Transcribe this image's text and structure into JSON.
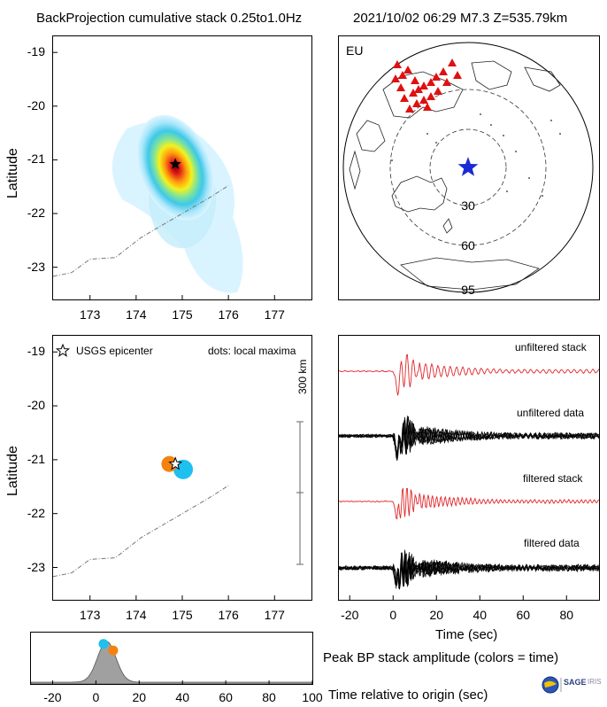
{
  "header": {
    "title": "BackProjection cumulative stack 0.25to1.0Hz",
    "event": "2021/10/02 06:29   M7.3   Z=535.79km"
  },
  "colors": {
    "stack": "#e0262a",
    "data": "#000000",
    "station": "#e01010",
    "epicenter_map": "#1a2bd6",
    "early": "#1ec0f0",
    "late": "#f5820f",
    "gray_fill": "#a0a0a0"
  },
  "chart_data": [
    {
      "type": "heatmap",
      "panel": "cumulative-stack",
      "xlabel": "",
      "ylabel": "Latitude",
      "xlim": [
        172.2,
        177.8
      ],
      "ylim": [
        -23.6,
        -18.7
      ],
      "xticks": [
        "173",
        "174",
        "175",
        "176",
        "177"
      ],
      "yticks": [
        "-19",
        "-20",
        "-21",
        "-22",
        "-23"
      ],
      "peak": {
        "lon": 174.85,
        "lat": -21.08
      },
      "epicenter": {
        "lon": 174.85,
        "lat": -21.08
      },
      "trench": [
        [
          172.2,
          -23.17
        ],
        [
          172.6,
          -23.1
        ],
        [
          173.0,
          -22.85
        ],
        [
          173.55,
          -22.82
        ],
        [
          174.1,
          -22.45
        ],
        [
          174.6,
          -22.2
        ],
        [
          175.1,
          -21.95
        ],
        [
          175.6,
          -21.7
        ],
        [
          176.0,
          -21.48
        ]
      ]
    },
    {
      "type": "scatter",
      "panel": "local-maxima",
      "ylabel": "Latitude",
      "legend_star": "USGS epicenter",
      "legend_dots": "dots: local maxima",
      "scale_label": "300 km",
      "xlim": [
        172.2,
        177.8
      ],
      "ylim": [
        -23.6,
        -18.7
      ],
      "xticks": [
        "173",
        "174",
        "175",
        "176",
        "177"
      ],
      "yticks": [
        "-19",
        "-20",
        "-21",
        "-22",
        "-23"
      ],
      "epicenter": {
        "lon": 174.85,
        "lat": -21.08
      },
      "maxima": [
        {
          "lon": 175.02,
          "lat": -21.18,
          "time": 3.5
        },
        {
          "lon": 174.72,
          "lat": -21.08,
          "time": 8
        }
      ],
      "trench": [
        [
          172.2,
          -23.17
        ],
        [
          172.6,
          -23.1
        ],
        [
          173.0,
          -22.85
        ],
        [
          173.55,
          -22.82
        ],
        [
          174.1,
          -22.45
        ],
        [
          174.6,
          -22.2
        ],
        [
          175.1,
          -21.95
        ],
        [
          175.6,
          -21.7
        ],
        [
          176.0,
          -21.48
        ]
      ]
    },
    {
      "type": "line",
      "panel": "seismograms",
      "xlabel": "Time (sec)",
      "xlim": [
        -25,
        95
      ],
      "xticks": [
        "-20",
        "0",
        "20",
        "40",
        "60",
        "80"
      ],
      "series": [
        {
          "name": "unfiltered stack"
        },
        {
          "name": "unfiltered data"
        },
        {
          "name": "filtered stack"
        },
        {
          "name": "filtered data"
        }
      ]
    },
    {
      "type": "area",
      "panel": "peak-amplitude",
      "title": "Peak BP stack amplitude (colors = time)",
      "xlabel": "Time relative to origin (sec)",
      "xlim": [
        -30,
        100
      ],
      "xticks": [
        "-20",
        "0",
        "20",
        "40",
        "60",
        "80",
        "100"
      ],
      "peak_time": 5,
      "markers": [
        {
          "time": 3.5
        },
        {
          "time": 8
        }
      ]
    }
  ],
  "map": {
    "region_label": "EU",
    "rings": [
      "30",
      "60",
      "95"
    ]
  },
  "logo": {
    "text": "SAGE",
    "subtext": "IRIS"
  }
}
